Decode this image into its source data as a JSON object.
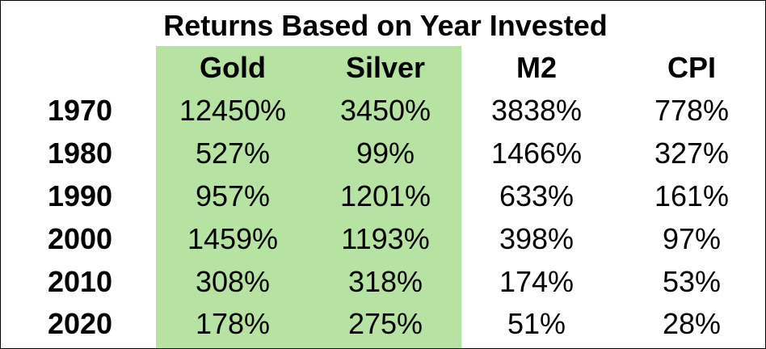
{
  "chart_data": {
    "type": "table",
    "title": "Returns Based on Year Invested",
    "columns": [
      "Gold",
      "Silver",
      "M2",
      "CPI"
    ],
    "rows": [
      {
        "year": "1970",
        "values": [
          "12450%",
          "3450%",
          "3838%",
          "778%"
        ]
      },
      {
        "year": "1980",
        "values": [
          "527%",
          "99%",
          "1466%",
          "327%"
        ]
      },
      {
        "year": "1990",
        "values": [
          "957%",
          "1201%",
          "633%",
          "161%"
        ]
      },
      {
        "year": "2000",
        "values": [
          "1459%",
          "1193%",
          "398%",
          "97%"
        ]
      },
      {
        "year": "2010",
        "values": [
          "308%",
          "318%",
          "174%",
          "53%"
        ]
      },
      {
        "year": "2020",
        "values": [
          "178%",
          "275%",
          "51%",
          "28%"
        ]
      }
    ],
    "highlighted_columns": [
      "Gold",
      "Silver"
    ],
    "highlight_color": "#b6e3a1"
  }
}
